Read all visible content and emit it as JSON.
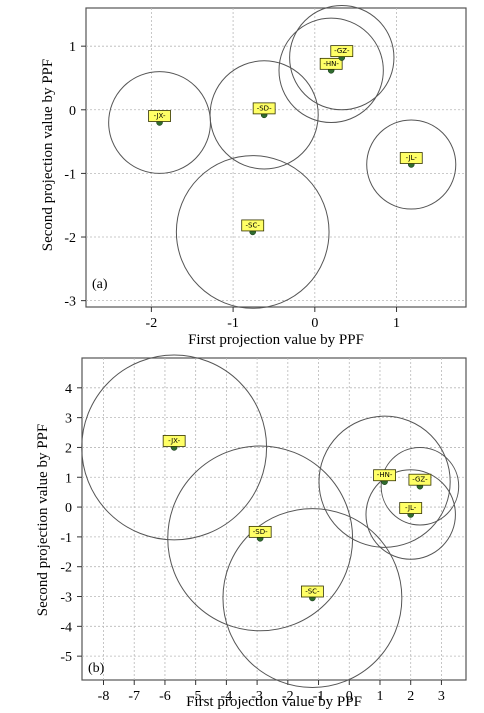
{
  "chart_data": [
    {
      "type": "scatter",
      "panel_label": "(a)",
      "xlabel": "First projection value by PPF",
      "ylabel": "Second projection value by PPF",
      "xlim": [
        -2.8,
        1.85
      ],
      "ylim": [
        -3.1,
        1.6
      ],
      "x_ticks": [
        -2,
        -1,
        0,
        1
      ],
      "y_ticks": [
        -3,
        -2,
        -1,
        0,
        1
      ],
      "grid": true,
      "points": [
        {
          "label": "-JX-",
          "x": -1.9,
          "y": -0.2,
          "radius": 0.8
        },
        {
          "label": "-SD-",
          "x": -0.62,
          "y": -0.08,
          "radius": 0.85
        },
        {
          "label": "-HN-",
          "x": 0.2,
          "y": 0.62,
          "radius": 0.82
        },
        {
          "label": "-GZ-",
          "x": 0.33,
          "y": 0.82,
          "radius": 0.82
        },
        {
          "label": "-JL-",
          "x": 1.18,
          "y": -0.86,
          "radius": 0.7
        },
        {
          "label": "-SC-",
          "x": -0.76,
          "y": -1.92,
          "radius": 1.2
        }
      ]
    },
    {
      "type": "scatter",
      "panel_label": "(b)",
      "xlabel": "First projection value by PPF",
      "ylabel": "Second projection value by PPF",
      "xlim": [
        -8.7,
        3.8
      ],
      "ylim": [
        -5.8,
        5.0
      ],
      "x_ticks": [
        -8,
        -7,
        -6,
        -5,
        -4,
        -3,
        -2,
        -1,
        0,
        1,
        2,
        3
      ],
      "y_ticks": [
        -5,
        -4,
        -3,
        -2,
        -1,
        0,
        1,
        2,
        3,
        4
      ],
      "grid": true,
      "points": [
        {
          "label": "-JX-",
          "x": -5.7,
          "y": 2.0,
          "radius": 3.1
        },
        {
          "label": "-SD-",
          "x": -2.9,
          "y": -1.05,
          "radius": 3.1
        },
        {
          "label": "-SC-",
          "x": -1.2,
          "y": -3.05,
          "radius": 3.0
        },
        {
          "label": "-HN-",
          "x": 1.15,
          "y": 0.85,
          "radius": 2.2
        },
        {
          "label": "-GZ-",
          "x": 2.3,
          "y": 0.7,
          "radius": 1.3
        },
        {
          "label": "-JL-",
          "x": 2.0,
          "y": -0.25,
          "radius": 1.5
        }
      ]
    }
  ]
}
